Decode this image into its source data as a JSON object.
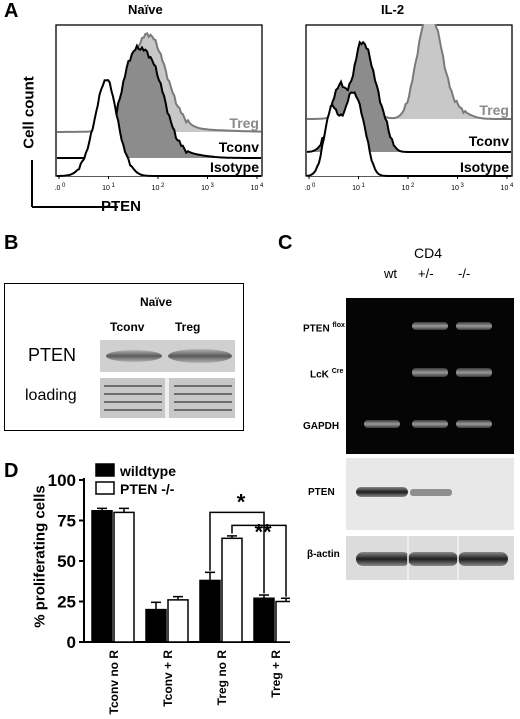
{
  "panel_letters": {
    "a": "A",
    "b": "B",
    "c": "C",
    "d": "D"
  },
  "panel_a": {
    "ylabel": "Cell count",
    "xlabel": "PTEN",
    "plots": [
      {
        "title": "Naïve",
        "labels": {
          "treg": "Treg",
          "tconv": "Tconv",
          "isotype": "Isotype"
        }
      },
      {
        "title": "IL-2",
        "labels": {
          "treg": "Treg",
          "tconv": "Tconv",
          "isotype": "Isotype"
        }
      }
    ],
    "ticks": [
      "10 0",
      "10 1",
      "10 2",
      "10 3",
      "10 4"
    ],
    "tick_base": "10",
    "tick_exps": [
      "0",
      "1",
      "2",
      "3",
      "4"
    ],
    "colors": {
      "treg_fill": "#c8c8c8",
      "treg_line": "#7a7a7a",
      "tconv_fill": "#8c8c8c",
      "isotype_line": "#000000"
    }
  },
  "panel_b": {
    "header": "Naïve",
    "col1": "Tconv",
    "col2": "Treg",
    "row1": "PTEN",
    "row2": "loading"
  },
  "panel_c": {
    "title": "CD4",
    "genotypes": [
      "wt",
      "+/-",
      "-/-"
    ],
    "rows": {
      "pten_flox": "PTEN",
      "pten_flox_sup": "flox",
      "lck_cre": "LcK",
      "lck_cre_sup": "Cre",
      "gapdh": "GAPDH",
      "pten": "PTEN",
      "actin": "β-actin"
    }
  },
  "chart_data": {
    "type": "bar",
    "categories": [
      "Tconv no R",
      "Tconv + R",
      "Treg no R",
      "Treg + R"
    ],
    "series": [
      {
        "name": "wildtype",
        "values": [
          81,
          20,
          38,
          27
        ],
        "errors": [
          1.5,
          4.5,
          5,
          2
        ],
        "color": "#000000"
      },
      {
        "name": "PTEN -/-",
        "values": [
          80,
          26,
          64,
          25
        ],
        "errors": [
          2.5,
          2,
          1.5,
          2
        ],
        "color": "#ffffff"
      }
    ],
    "ylabel": "% proliferating cells",
    "xlabel": "",
    "ylim": [
      0,
      100
    ],
    "yticks": [
      "0",
      "25",
      "50",
      "75",
      "100"
    ],
    "significance": [
      "*",
      "**"
    ],
    "legend_position": "top-left"
  }
}
